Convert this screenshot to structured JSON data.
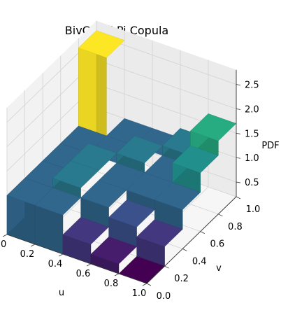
{
  "chart_data": {
    "type": "surface3d",
    "title": "BivCheckPi Copula",
    "xlabel": "u",
    "ylabel": "v",
    "zlabel": "PDF",
    "xticks": [
      "0.0",
      "0.2",
      "0.4",
      "0.6",
      "0.8",
      "1.0"
    ],
    "yticks": [
      "0.0",
      "0.2",
      "0.4",
      "0.6",
      "0.8",
      "1.0"
    ],
    "zticks": [
      "0.5",
      "1.0",
      "1.5",
      "2.0",
      "2.5"
    ],
    "xlim": [
      0,
      1
    ],
    "ylim": [
      0,
      1
    ],
    "zlim": [
      0.2,
      2.8
    ],
    "colormap": "viridis",
    "grid": true,
    "u_edges": [
      0.0,
      0.2,
      0.4,
      0.6,
      0.8,
      1.0
    ],
    "v_edges": [
      0.0,
      0.2,
      0.4,
      0.6,
      0.8,
      1.0
    ],
    "pdf_values": [
      [
        1.0,
        1.0,
        1.0,
        1.0,
        2.6
      ],
      [
        1.0,
        1.2,
        1.2,
        1.0,
        1.0
      ],
      [
        0.6,
        1.0,
        1.0,
        1.2,
        1.0
      ],
      [
        0.4,
        0.8,
        1.0,
        1.0,
        1.2
      ],
      [
        0.2,
        0.6,
        1.0,
        1.4,
        1.7
      ]
    ]
  }
}
